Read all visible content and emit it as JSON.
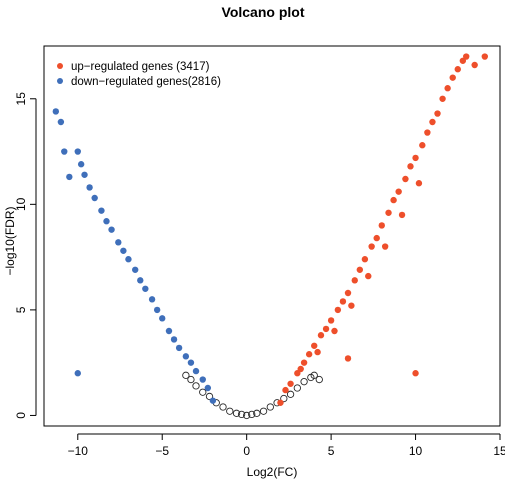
{
  "chart_data": {
    "type": "scatter",
    "title": "Volcano plot",
    "xlabel": "Log2(FC)",
    "ylabel": "−log10(FDR)",
    "xlim": [
      -12,
      15
    ],
    "ylim": [
      -0.5,
      17.5
    ],
    "x_ticks": [
      -10,
      -5,
      0,
      5,
      10,
      15
    ],
    "y_ticks": [
      0,
      5,
      10,
      15
    ],
    "grid": false,
    "legend_position": "top-left",
    "colors": {
      "up": "#ee4f2b",
      "down": "#3f6fba",
      "ns": "#2a2a2a"
    },
    "legend": [
      {
        "label": "up−regulated genes (3417)",
        "series": "up"
      },
      {
        "label": "down−regulated genes(2816)",
        "series": "down"
      }
    ],
    "series": [
      {
        "name": "up−regulated genes (3417)",
        "key": "up",
        "marker": "filled-circle",
        "points": [
          [
            2.0,
            0.6
          ],
          [
            2.3,
            1.2
          ],
          [
            2.6,
            1.5
          ],
          [
            3.0,
            2.0
          ],
          [
            3.2,
            2.2
          ],
          [
            3.4,
            2.5
          ],
          [
            3.7,
            2.9
          ],
          [
            4.0,
            3.3
          ],
          [
            4.2,
            3.0
          ],
          [
            4.4,
            3.8
          ],
          [
            4.7,
            4.1
          ],
          [
            5.0,
            4.5
          ],
          [
            5.2,
            4.0
          ],
          [
            5.4,
            5.0
          ],
          [
            5.7,
            5.4
          ],
          [
            6.0,
            5.8
          ],
          [
            6.2,
            5.2
          ],
          [
            6.4,
            6.4
          ],
          [
            6.7,
            6.9
          ],
          [
            7.0,
            7.4
          ],
          [
            7.2,
            6.6
          ],
          [
            7.4,
            8.0
          ],
          [
            7.7,
            8.4
          ],
          [
            8.0,
            9.0
          ],
          [
            8.2,
            8.0
          ],
          [
            8.4,
            9.6
          ],
          [
            8.7,
            10.2
          ],
          [
            9.0,
            10.6
          ],
          [
            9.2,
            9.5
          ],
          [
            9.4,
            11.2
          ],
          [
            9.7,
            11.8
          ],
          [
            10.0,
            12.2
          ],
          [
            10.2,
            11.0
          ],
          [
            10.4,
            12.8
          ],
          [
            10.7,
            13.4
          ],
          [
            11.0,
            13.9
          ],
          [
            11.3,
            14.3
          ],
          [
            11.6,
            15.0
          ],
          [
            11.9,
            15.5
          ],
          [
            12.2,
            16.0
          ],
          [
            12.5,
            16.4
          ],
          [
            12.8,
            16.8
          ],
          [
            13.0,
            17.0
          ],
          [
            13.5,
            16.6
          ],
          [
            14.1,
            17.0
          ],
          [
            10.0,
            2.0
          ],
          [
            6.0,
            2.7
          ]
        ]
      },
      {
        "name": "down−regulated genes(2816)",
        "key": "down",
        "marker": "filled-circle",
        "points": [
          [
            -2.0,
            0.7
          ],
          [
            -2.3,
            1.3
          ],
          [
            -2.6,
            1.7
          ],
          [
            -3.0,
            2.1
          ],
          [
            -3.3,
            2.5
          ],
          [
            -3.6,
            2.8
          ],
          [
            -4.0,
            3.2
          ],
          [
            -4.3,
            3.6
          ],
          [
            -4.6,
            4.0
          ],
          [
            -5.0,
            4.6
          ],
          [
            -5.3,
            5.0
          ],
          [
            -5.6,
            5.5
          ],
          [
            -6.0,
            6.0
          ],
          [
            -6.3,
            6.4
          ],
          [
            -6.6,
            6.9
          ],
          [
            -7.0,
            7.4
          ],
          [
            -7.3,
            7.8
          ],
          [
            -7.6,
            8.2
          ],
          [
            -8.0,
            8.8
          ],
          [
            -8.3,
            9.2
          ],
          [
            -8.6,
            9.7
          ],
          [
            -9.0,
            10.3
          ],
          [
            -9.3,
            10.8
          ],
          [
            -9.6,
            11.4
          ],
          [
            -9.8,
            11.9
          ],
          [
            -10.0,
            12.5
          ],
          [
            -10.5,
            11.3
          ],
          [
            -10.8,
            12.5
          ],
          [
            -11.0,
            13.9
          ],
          [
            -11.3,
            14.4
          ],
          [
            -10.0,
            2.0
          ]
        ]
      },
      {
        "name": "",
        "key": "ns",
        "marker": "open-circle",
        "points": [
          [
            0.0,
            0.0
          ],
          [
            0.3,
            0.05
          ],
          [
            -0.3,
            0.05
          ],
          [
            0.6,
            0.1
          ],
          [
            -0.6,
            0.1
          ],
          [
            1.0,
            0.2
          ],
          [
            -1.0,
            0.2
          ],
          [
            1.4,
            0.4
          ],
          [
            -1.4,
            0.4
          ],
          [
            1.8,
            0.6
          ],
          [
            -1.8,
            0.6
          ],
          [
            2.2,
            0.8
          ],
          [
            -2.2,
            0.9
          ],
          [
            2.6,
            1.0
          ],
          [
            -2.6,
            1.1
          ],
          [
            3.0,
            1.3
          ],
          [
            -3.0,
            1.4
          ],
          [
            3.4,
            1.6
          ],
          [
            -3.3,
            1.7
          ],
          [
            3.8,
            1.8
          ],
          [
            -3.6,
            1.9
          ],
          [
            4.0,
            1.9
          ],
          [
            4.3,
            1.7
          ]
        ]
      }
    ]
  }
}
